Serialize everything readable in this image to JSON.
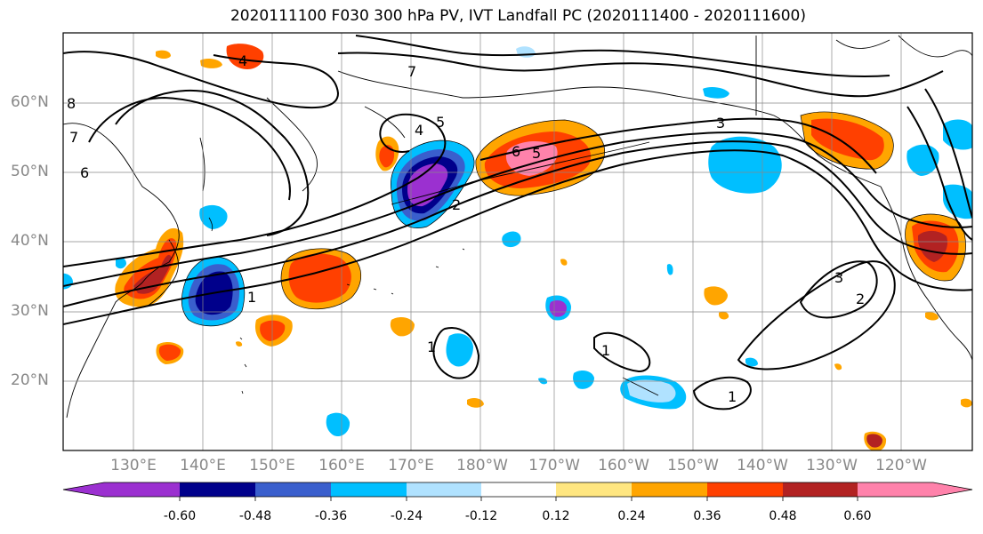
{
  "title": "2020111100 F030 300 hPa PV, IVT Landfall PC (2020111400 - 2020111600)",
  "map": {
    "projection": "cylindrical",
    "lon_range": [
      120,
      251
    ],
    "lat_range": [
      10,
      70
    ],
    "lat_labels": [
      "60°N",
      "50°N",
      "40°N",
      "30°N",
      "20°N"
    ],
    "lon_labels": [
      "130°E",
      "140°E",
      "150°E",
      "160°E",
      "170°E",
      "180°W",
      "170°W",
      "160°W",
      "150°W",
      "140°W",
      "130°W",
      "120°W"
    ],
    "contour_line_labels": [
      "7",
      "6",
      "5",
      "4",
      "3",
      "2",
      "1",
      "1",
      "1",
      "1",
      "2",
      "3",
      "4",
      "5",
      "6",
      "7",
      "8"
    ],
    "fill_colors": {
      "neg_strong": "#9b30d0",
      "neg_navy": "#00008b",
      "neg_blue": "#3a5fcd",
      "neg_cyan": "#00bfff",
      "neg_light": "#b0e2ff",
      "pos_yellow": "#ffe680",
      "pos_orange": "#ffa500",
      "pos_redorange": "#ff4000",
      "pos_darkred": "#b22222",
      "pos_pink": "#ff82ab"
    }
  },
  "colorbar": {
    "ticks": [
      "-0.60",
      "-0.48",
      "-0.36",
      "-0.24",
      "-0.12",
      "0.12",
      "0.24",
      "0.36",
      "0.48",
      "0.60"
    ],
    "colors": [
      "#9b30d0",
      "#00008b",
      "#3a5fcd",
      "#00bfff",
      "#b0e2ff",
      "#ffffff",
      "#ffe680",
      "#ffa500",
      "#ff4000",
      "#b22222",
      "#ff82ab"
    ]
  }
}
